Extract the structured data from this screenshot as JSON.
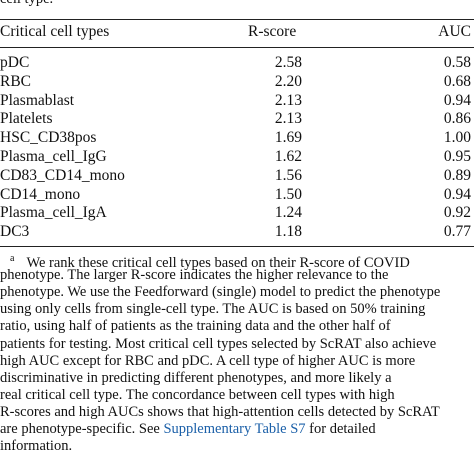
{
  "caption_tail": "cell type.",
  "table": {
    "header": [
      "Critical cell types",
      "R-score",
      "AUC"
    ],
    "rows": [
      [
        "pDC",
        "2.58",
        "0.58"
      ],
      [
        "RBC",
        "2.20",
        "0.68"
      ],
      [
        "Plasmablast",
        "2.13",
        "0.94"
      ],
      [
        "Platelets",
        "2.13",
        "0.86"
      ],
      [
        "HSC_CD38pos",
        "1.69",
        "1.00"
      ],
      [
        "Plasma_cell_IgG",
        "1.62",
        "0.95"
      ],
      [
        "CD83_CD14_mono",
        "1.56",
        "0.89"
      ],
      [
        "CD14_mono",
        "1.50",
        "0.94"
      ],
      [
        "Plasma_cell_IgA",
        "1.24",
        "0.92"
      ],
      [
        "DC3",
        "1.18",
        "0.77"
      ]
    ]
  },
  "footnote": {
    "marker": "a",
    "lines": [
      "We rank these critical cell types based on their R-score of COVID",
      "phenotype. The larger R-score indicates the higher relevance to the",
      "phenotype. We use the Feedforward (single) model to predict the phenotype",
      "using only cells from single-cell type. The AUC is based on 50% training",
      "ratio, using half of patients as the training data and the other half of",
      "patients for testing. Most critical cell types selected by ScRAT also achieve",
      "high AUC except for RBC and pDC. A cell type of higher AUC is more",
      "discriminative in predicting different phenotypes, and more likely a",
      "real critical cell type. The concordance between cell types with high",
      "R-scores and high AUCs shows that high-attention cells detected by ScRAT"
    ],
    "link_line_before": "are phenotype-specific. See ",
    "link_text": "Supplementary Table S7",
    "link_line_after": " for detailed",
    "last_line": "information."
  }
}
